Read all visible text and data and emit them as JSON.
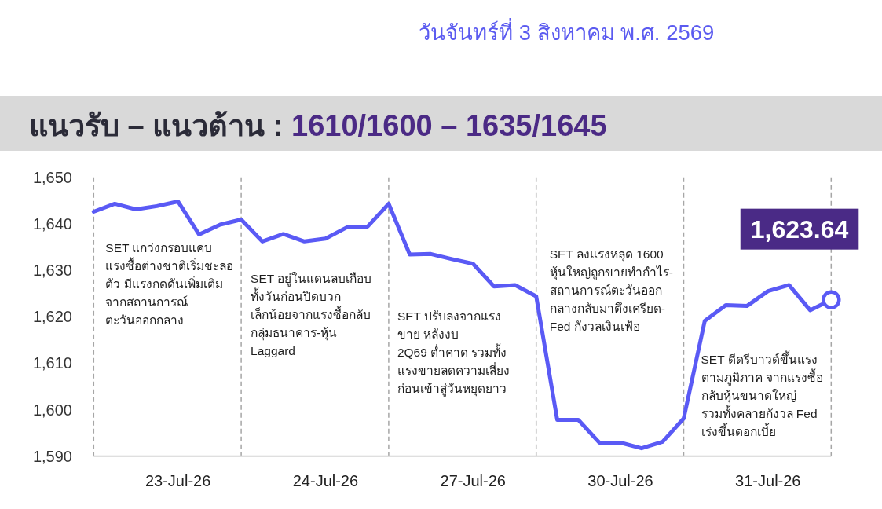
{
  "chart_data": {
    "type": "line",
    "title": "แนวรับ – แนวต้าน : 1610/1600 – 1635/1645",
    "subtitle": "วันจันทร์ที่ 3 สิงหาคม พ.ศ. 2569",
    "categories": [
      null,
      null,
      null,
      null,
      "23-Jul-26",
      null,
      null,
      null,
      null,
      null,
      null,
      "24-Jul-26",
      null,
      null,
      null,
      null,
      null,
      null,
      "27-Jul-26",
      null,
      null,
      null,
      null,
      null,
      null,
      "30-Jul-26",
      null,
      null,
      null,
      null,
      null,
      null,
      "31-Jul-26",
      null,
      null,
      null
    ],
    "ylim": [
      1590,
      1650
    ],
    "yticks": [
      {
        "value": 1590,
        "label": "1,590"
      },
      {
        "value": 1600,
        "label": "1,600"
      },
      {
        "value": 1610,
        "label": "1,610"
      },
      {
        "value": 1620,
        "label": "1,620"
      },
      {
        "value": 1630,
        "label": "1,630"
      },
      {
        "value": 1640,
        "label": "1,640"
      },
      {
        "value": 1650,
        "label": "1,650"
      }
    ],
    "grid": "x",
    "series": [
      {
        "color": "#5a5af5",
        "values": [
          1642.6,
          1644.3,
          1643.1,
          1643.8,
          1644.8,
          1637.7,
          1639.8,
          1640.9,
          1636.2,
          1637.8,
          1636.2,
          1636.8,
          1639.2,
          1639.4,
          1644.3,
          1633.4,
          1633.5,
          1632.4,
          1631.4,
          1626.5,
          1626.8,
          1624.4,
          1597.8,
          1597.8,
          1592.9,
          1592.9,
          1591.7,
          1593.1,
          1598.1,
          1619.1,
          1622.5,
          1622.3,
          1625.5,
          1626.8,
          1621.4,
          1623.64
        ]
      },
      {
        "type": "scatter",
        "color": "#5a5af5",
        "marker": "circle",
        "values": [
          null,
          null,
          null,
          null,
          null,
          null,
          null,
          null,
          null,
          null,
          null,
          null,
          null,
          null,
          null,
          null,
          null,
          null,
          null,
          null,
          null,
          null,
          null,
          null,
          null,
          null,
          null,
          null,
          null,
          null,
          null,
          null,
          null,
          null,
          null,
          1623.64
        ]
      }
    ],
    "annotations": [
      "SET แกว่งกรอบแคบ\nแรงซื้อต่างชาติเริ่มชะลอ\nตัว มีแรงกดดันเพิ่มเติม\nจากสถานการณ์\nตะวันออกกลาง",
      "SET อยู่ในแดนลบเกือบ\nทั้งวันก่อนปิดบวก\nเล็กน้อยจากแรงซื้อกลับ\nกลุ่มธนาคาร-หุ้น\nLaggard",
      "SET ปรับลงจากแรง\nขาย หลังงบ\n2Q69 ต่ำคาด รวมทั้ง\nแรงขายลดความเสี่ยง\nก่อนเข้าสู่วันหยุดยาว",
      "SET ลงแรงหลุด 1600\nหุ้นใหญ่ถูกขายทำกำไร-\nสถานการณ์ตะวันออก\nกลางกลับมาตึงเครียด-\nFed กังวลเงินเฟ้อ",
      "SET ดีดรีบาวด์ขึ้นแรง\nตามภูมิภาค จากแรงซื้อ\nกลับหุ้นขนาดใหญ่\nรวมทั้งคลายกังวล Fed\nเร่งขึ้นดอกเบี้ย",
      {
        "text": "1,623.64",
        "y": 1623.64
      }
    ]
  }
}
